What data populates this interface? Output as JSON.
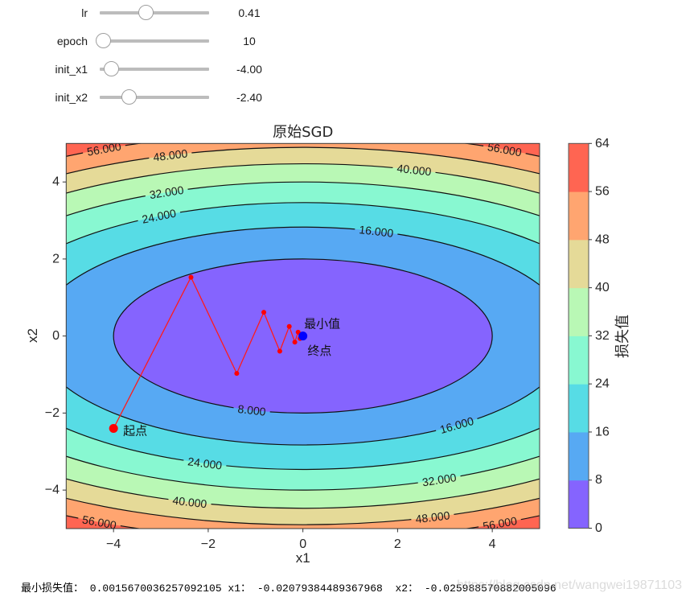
{
  "controls": {
    "sliders": [
      {
        "label": "lr",
        "value": "0.41",
        "position_pct": 42
      },
      {
        "label": "epoch",
        "value": "10",
        "position_pct": 3
      },
      {
        "label": "init_x1",
        "value": "-4.00",
        "position_pct": 11
      },
      {
        "label": "init_x2",
        "value": "-2.40",
        "position_pct": 26.5
      }
    ]
  },
  "chart_data": {
    "type": "contour",
    "title": "原始SGD",
    "xlabel": "x1",
    "ylabel": "x2",
    "xlim": [
      -5,
      5
    ],
    "ylim": [
      -5,
      5
    ],
    "xticks": [
      -4,
      -2,
      0,
      2,
      4
    ],
    "yticks": [
      -4,
      -2,
      0,
      2,
      4
    ],
    "surface": {
      "formula": "0.5*x1^2 + 2*x2^2",
      "a": 0.5,
      "b": 2
    },
    "levels": [
      0,
      8,
      16,
      24,
      32,
      40,
      48,
      56,
      64
    ],
    "band_colors": [
      "#8564fe",
      "#57a9f3",
      "#57dce5",
      "#88f8d1",
      "#b9f8b5",
      "#e5da98",
      "#ffa570",
      "#ff6552"
    ],
    "contour_labels": [
      {
        "text": "56.000",
        "level": 56,
        "x1": -4.2,
        "side": "top"
      },
      {
        "text": "48.000",
        "level": 48,
        "x1": -2.8,
        "side": "top"
      },
      {
        "text": "56.000",
        "level": 56,
        "x1": 4.26,
        "side": "top"
      },
      {
        "text": "40.000",
        "level": 40,
        "x1": 2.35,
        "side": "top"
      },
      {
        "text": "32.000",
        "level": 32,
        "x1": -2.88,
        "side": "top"
      },
      {
        "text": "24.000",
        "level": 24,
        "x1": -3.04,
        "side": "top"
      },
      {
        "text": "16.000",
        "level": 16,
        "x1": 1.55,
        "side": "top"
      },
      {
        "text": "8.000",
        "level": 8,
        "x1": -1.08,
        "side": "bottom"
      },
      {
        "text": "16.000",
        "level": 16,
        "x1": 3.25,
        "side": "bottom"
      },
      {
        "text": "24.000",
        "level": 24,
        "x1": -2.07,
        "side": "bottom"
      },
      {
        "text": "32.000",
        "level": 32,
        "x1": 2.88,
        "side": "bottom"
      },
      {
        "text": "40.000",
        "level": 40,
        "x1": -2.39,
        "side": "bottom"
      },
      {
        "text": "48.000",
        "level": 48,
        "x1": 2.74,
        "side": "bottom"
      },
      {
        "text": "56.000",
        "level": 56,
        "x1": -4.3,
        "side": "bottom"
      },
      {
        "text": "56.000",
        "level": 56,
        "x1": 4.16,
        "side": "bottom"
      }
    ],
    "colorbar": {
      "label": "损失值",
      "ticks": [
        0,
        8,
        16,
        24,
        32,
        40,
        48,
        56,
        64
      ]
    },
    "trajectory": {
      "color": "#ff1a1a",
      "x1": [
        -4.0,
        -2.364,
        -1.39712,
        -0.8257,
        -0.48799,
        -0.2884,
        -0.17045,
        -0.10073,
        -0.05953,
        -0.03518,
        -0.02079
      ],
      "x2": [
        -2.4,
        1.5264,
        -0.97079,
        0.61742,
        -0.39268,
        0.24975,
        -0.15884,
        0.10102,
        -0.06425,
        0.04086,
        -0.02599
      ]
    },
    "annotations": {
      "start": {
        "label": "起点",
        "x1": -4.0,
        "x2": -2.4,
        "color": "#ff0000"
      },
      "minimum": {
        "label": "最小值",
        "x1": 0,
        "x2": 0,
        "color": "#0000ff"
      },
      "end": {
        "label": "终点",
        "x1": -0.02079,
        "x2": -0.02599
      }
    }
  },
  "output": {
    "text": "最小损失值： 0.0015670036257092105 x1： -0.02079384489367968  x2： -0.025988570882005096"
  },
  "watermark": "https://blog.csdn.net/wangwei19871103"
}
